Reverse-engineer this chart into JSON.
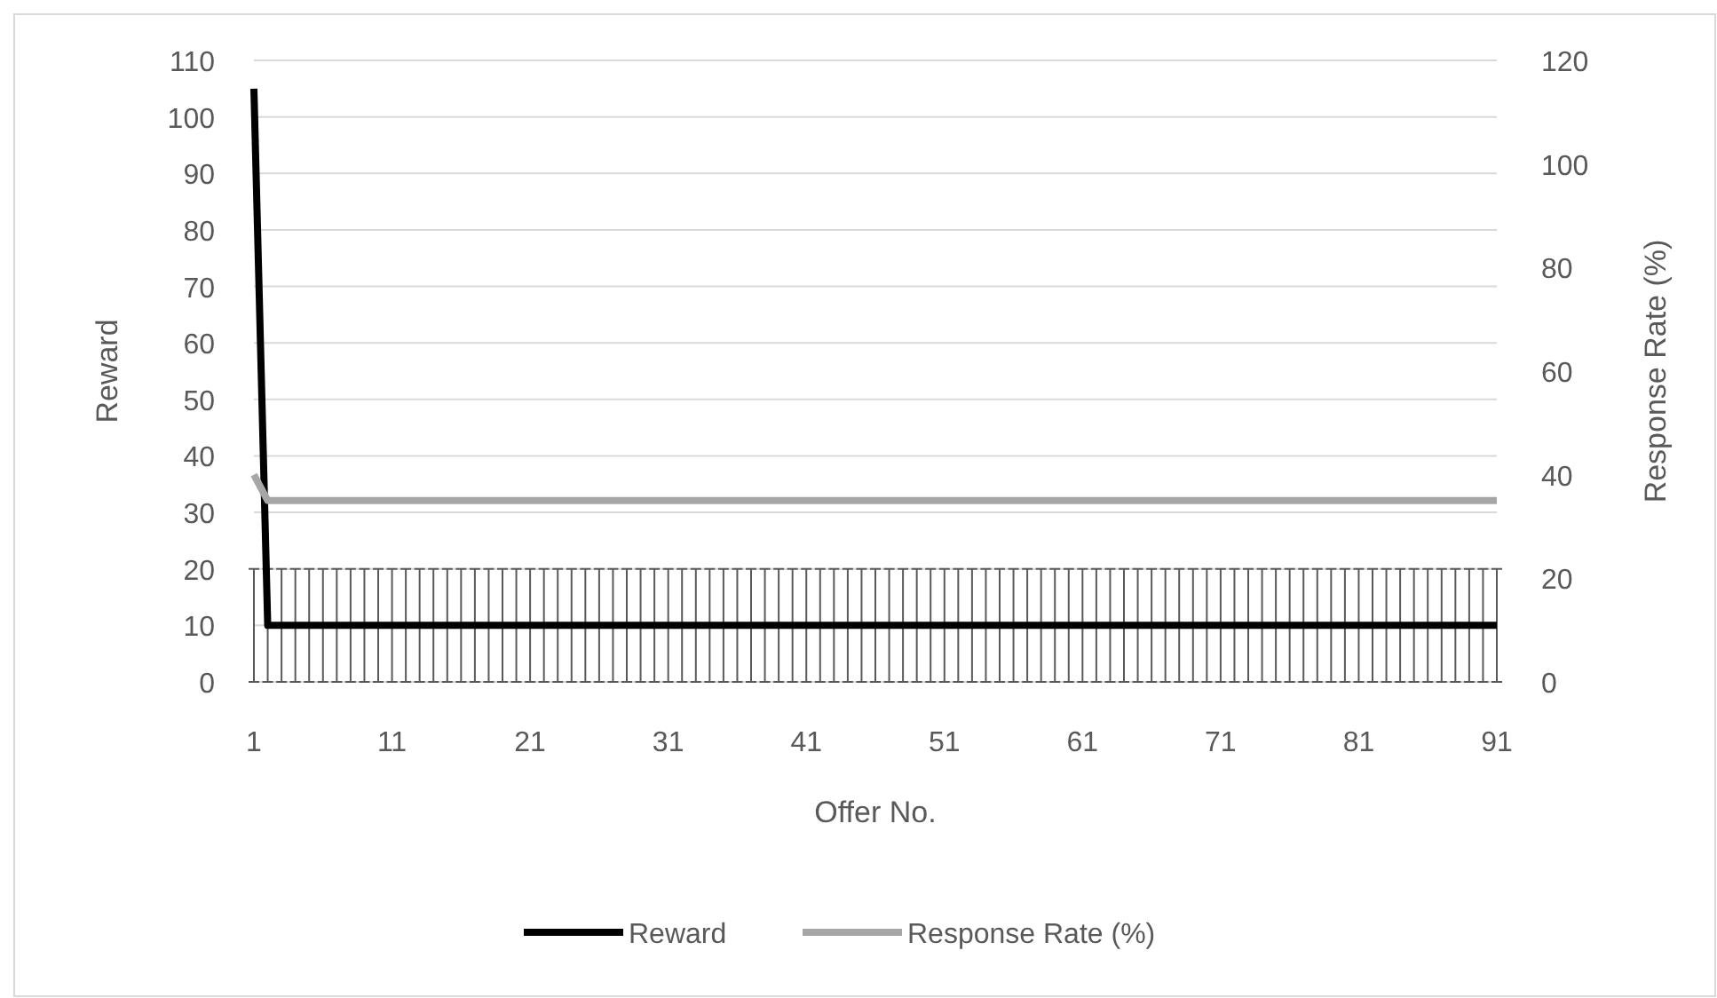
{
  "chart_data": {
    "type": "line",
    "xlabel": "Offer No.",
    "ylabel": "Reward",
    "y2label": "Response Rate (%)",
    "x": [
      1,
      2,
      3,
      4,
      5,
      6,
      7,
      8,
      9,
      10,
      11,
      12,
      13,
      14,
      15,
      16,
      17,
      18,
      19,
      20,
      21,
      22,
      23,
      24,
      25,
      26,
      27,
      28,
      29,
      30,
      31,
      32,
      33,
      34,
      35,
      36,
      37,
      38,
      39,
      40,
      41,
      42,
      43,
      44,
      45,
      46,
      47,
      48,
      49,
      50,
      51,
      52,
      53,
      54,
      55,
      56,
      57,
      58,
      59,
      60,
      61,
      62,
      63,
      64,
      65,
      66,
      67,
      68,
      69,
      70,
      71,
      72,
      73,
      74,
      75,
      76,
      77,
      78,
      79,
      80,
      81,
      82,
      83,
      84,
      85,
      86,
      87,
      88,
      89,
      90,
      91
    ],
    "xlim": [
      1,
      91
    ],
    "xticks": [
      1,
      11,
      21,
      31,
      41,
      51,
      61,
      71,
      81,
      91
    ],
    "ylim": [
      0,
      110
    ],
    "yticks": [
      0,
      10,
      20,
      30,
      40,
      50,
      60,
      70,
      80,
      90,
      100,
      110
    ],
    "y2lim": [
      0,
      120
    ],
    "y2ticks": [
      0,
      20,
      40,
      60,
      80,
      100,
      120
    ],
    "grid": "y",
    "legend": "bottom",
    "marker": "none",
    "line_style": "solid",
    "series": [
      {
        "name": "Reward",
        "color": "#000000",
        "values": [
          105,
          10,
          10,
          10,
          10,
          10,
          10,
          10,
          10,
          10,
          10,
          10,
          10,
          10,
          10,
          10,
          10,
          10,
          10,
          10,
          10,
          10,
          10,
          10,
          10,
          10,
          10,
          10,
          10,
          10,
          10,
          10,
          10,
          10,
          10,
          10,
          10,
          10,
          10,
          10,
          10,
          10,
          10,
          10,
          10,
          10,
          10,
          10,
          10,
          10,
          10,
          10,
          10,
          10,
          10,
          10,
          10,
          10,
          10,
          10,
          10,
          10,
          10,
          10,
          10,
          10,
          10,
          10,
          10,
          10,
          10,
          10,
          10,
          10,
          10,
          10,
          10,
          10,
          10,
          10,
          10,
          10,
          10,
          10,
          10,
          10,
          10,
          10,
          10,
          10,
          10
        ],
        "errors": [
          [
            0,
            20
          ],
          [
            0,
            20
          ],
          [
            0,
            20
          ],
          [
            0,
            20
          ],
          [
            0,
            20
          ],
          [
            0,
            20
          ],
          [
            0,
            20
          ],
          [
            0,
            20
          ],
          [
            0,
            20
          ],
          [
            0,
            20
          ],
          [
            0,
            20
          ],
          [
            0,
            20
          ],
          [
            0,
            20
          ],
          [
            0,
            20
          ],
          [
            0,
            20
          ],
          [
            0,
            20
          ],
          [
            0,
            20
          ],
          [
            0,
            20
          ],
          [
            0,
            20
          ],
          [
            0,
            20
          ],
          [
            0,
            20
          ],
          [
            0,
            20
          ],
          [
            0,
            20
          ],
          [
            0,
            20
          ],
          [
            0,
            20
          ],
          [
            0,
            20
          ],
          [
            0,
            20
          ],
          [
            0,
            20
          ],
          [
            0,
            20
          ],
          [
            0,
            20
          ],
          [
            0,
            20
          ],
          [
            0,
            20
          ],
          [
            0,
            20
          ],
          [
            0,
            20
          ],
          [
            0,
            20
          ],
          [
            0,
            20
          ],
          [
            0,
            20
          ],
          [
            0,
            20
          ],
          [
            0,
            20
          ],
          [
            0,
            20
          ],
          [
            0,
            20
          ],
          [
            0,
            20
          ],
          [
            0,
            20
          ],
          [
            0,
            20
          ],
          [
            0,
            20
          ],
          [
            0,
            20
          ],
          [
            0,
            20
          ],
          [
            0,
            20
          ],
          [
            0,
            20
          ],
          [
            0,
            20
          ],
          [
            0,
            20
          ],
          [
            0,
            20
          ],
          [
            0,
            20
          ],
          [
            0,
            20
          ],
          [
            0,
            20
          ],
          [
            0,
            20
          ],
          [
            0,
            20
          ],
          [
            0,
            20
          ],
          [
            0,
            20
          ],
          [
            0,
            20
          ],
          [
            0,
            20
          ],
          [
            0,
            20
          ],
          [
            0,
            20
          ],
          [
            0,
            20
          ],
          [
            0,
            20
          ],
          [
            0,
            20
          ],
          [
            0,
            20
          ],
          [
            0,
            20
          ],
          [
            0,
            20
          ],
          [
            0,
            20
          ],
          [
            0,
            20
          ],
          [
            0,
            20
          ],
          [
            0,
            20
          ],
          [
            0,
            20
          ],
          [
            0,
            20
          ],
          [
            0,
            20
          ],
          [
            0,
            20
          ],
          [
            0,
            20
          ],
          [
            0,
            20
          ],
          [
            0,
            20
          ],
          [
            0,
            20
          ],
          [
            0,
            20
          ],
          [
            0,
            20
          ],
          [
            0,
            20
          ],
          [
            0,
            20
          ],
          [
            0,
            20
          ],
          [
            0,
            20
          ],
          [
            0,
            20
          ],
          [
            0,
            20
          ],
          [
            0,
            20
          ],
          [
            0,
            20
          ]
        ]
      },
      {
        "name": "Response Rate (%)",
        "color": "#a6a6a6",
        "axis": "y2",
        "values": [
          40,
          35,
          35,
          35,
          35,
          35,
          35,
          35,
          35,
          35,
          35,
          35,
          35,
          35,
          35,
          35,
          35,
          35,
          35,
          35,
          35,
          35,
          35,
          35,
          35,
          35,
          35,
          35,
          35,
          35,
          35,
          35,
          35,
          35,
          35,
          35,
          35,
          35,
          35,
          35,
          35,
          35,
          35,
          35,
          35,
          35,
          35,
          35,
          35,
          35,
          35,
          35,
          35,
          35,
          35,
          35,
          35,
          35,
          35,
          35,
          35,
          35,
          35,
          35,
          35,
          35,
          35,
          35,
          35,
          35,
          35,
          35,
          35,
          35,
          35,
          35,
          35,
          35,
          35,
          35,
          35,
          35,
          35,
          35,
          35,
          35,
          35,
          35,
          35,
          35,
          35
        ]
      }
    ]
  }
}
